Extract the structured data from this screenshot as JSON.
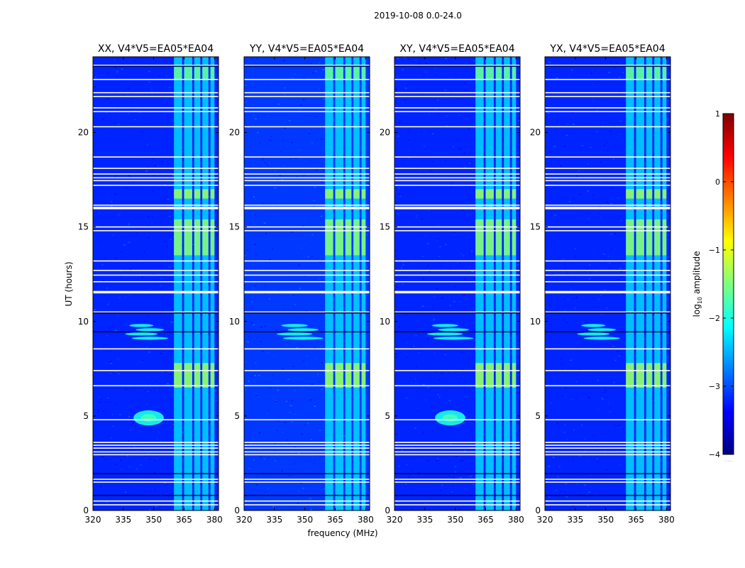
{
  "figure": {
    "suptitle": "2019-10-08 0.0-24.0",
    "ylabel": "UT (hours)",
    "xlabel": "frequency (MHz)"
  },
  "colorbar": {
    "label_text": "log",
    "label_sub": "10",
    "label_suffix": " amplitude",
    "min": -4,
    "max": 1,
    "ticks": [
      1,
      0,
      -1,
      -2,
      -3,
      -4
    ],
    "tick_labels": [
      "1",
      "0",
      "−1",
      "−2",
      "−3",
      "−4"
    ],
    "bottom_note": ".....",
    "colormap": [
      "#00007f",
      "#0000ff",
      "#007fff",
      "#00ffff",
      "#7fff7f",
      "#ffff00",
      "#ff7f00",
      "#ff0000",
      "#7f0000"
    ]
  },
  "chart_data": [
    {
      "type": "heatmap",
      "title": "XX, V4*V5=EA05*EA04",
      "xlim": [
        320,
        382
      ],
      "ylim": [
        0,
        24
      ],
      "xticks": [
        320,
        335,
        350,
        365,
        380
      ],
      "yticks": [
        0,
        5,
        10,
        15,
        20
      ],
      "xtick_labels": [
        "320",
        "335",
        "350",
        "365",
        "380"
      ],
      "ytick_labels": [
        "0",
        "5",
        "10",
        "15",
        "20"
      ],
      "background_log10_amplitude": -3.2,
      "bright_freq_bands_mhz": [
        [
          360,
          364
        ],
        [
          365,
          369
        ],
        [
          370,
          373
        ],
        [
          374,
          377
        ],
        [
          378,
          380
        ]
      ],
      "flagged_ut_hours": [
        0.3,
        0.5,
        1.5,
        1.65,
        2.95,
        3.1,
        3.3,
        3.45,
        3.6,
        4.8,
        6.6,
        7.4,
        8.55,
        10.5,
        11.55,
        12.1,
        12.45,
        12.7,
        13.2,
        14.8,
        15.0,
        16.0,
        16.15,
        17.2,
        17.45,
        17.6,
        17.8,
        18.1,
        18.7,
        20.3,
        21.1,
        21.3,
        21.9,
        22.1,
        22.8,
        23.55
      ],
      "features": [
        {
          "type": "broadband_rfi_blob",
          "ut_range": [
            4.5,
            5.3
          ],
          "freq_range_mhz": [
            340,
            355
          ]
        },
        {
          "type": "broadband_rfi_streaks",
          "ut_range": [
            9.0,
            9.9
          ],
          "freq_range_mhz": [
            336,
            356
          ]
        }
      ]
    },
    {
      "type": "heatmap",
      "title": "YY, V4*V5=EA05*EA04",
      "xlim": [
        320,
        382
      ],
      "ylim": [
        0,
        24
      ],
      "xticks": [
        320,
        335,
        350,
        365,
        380
      ],
      "yticks": [
        0,
        5,
        10,
        15,
        20
      ],
      "xtick_labels": [
        "320",
        "335",
        "350",
        "365",
        "380"
      ],
      "ytick_labels": [
        "0",
        "5",
        "10",
        "15",
        "20"
      ],
      "background_log10_amplitude": -3.1,
      "bright_freq_bands_mhz": [
        [
          360,
          364
        ],
        [
          365,
          369
        ],
        [
          370,
          373
        ],
        [
          374,
          377
        ],
        [
          378,
          380
        ]
      ],
      "flagged_ut_hours": [
        0.3,
        0.5,
        1.5,
        1.65,
        2.95,
        3.1,
        3.3,
        3.45,
        3.6,
        4.8,
        6.6,
        7.4,
        8.55,
        10.5,
        11.55,
        12.1,
        12.45,
        12.7,
        13.2,
        14.8,
        15.0,
        16.0,
        16.15,
        17.2,
        17.45,
        17.6,
        17.8,
        18.1,
        18.7,
        20.3,
        21.1,
        21.3,
        21.9,
        22.1,
        22.8,
        23.55
      ],
      "features": [
        {
          "type": "broadband_rfi_streaks",
          "ut_range": [
            9.0,
            9.9
          ],
          "freq_range_mhz": [
            336,
            358
          ]
        }
      ]
    },
    {
      "type": "heatmap",
      "title": "XY, V4*V5=EA05*EA04",
      "xlim": [
        320,
        382
      ],
      "ylim": [
        0,
        24
      ],
      "xticks": [
        320,
        335,
        350,
        365,
        380
      ],
      "yticks": [
        0,
        5,
        10,
        15,
        20
      ],
      "xtick_labels": [
        "320",
        "335",
        "350",
        "365",
        "380"
      ],
      "ytick_labels": [
        "0",
        "5",
        "10",
        "15",
        "20"
      ],
      "background_log10_amplitude": -3.2,
      "bright_freq_bands_mhz": [
        [
          360,
          364
        ],
        [
          365,
          369
        ],
        [
          370,
          373
        ],
        [
          374,
          377
        ],
        [
          378,
          380
        ]
      ],
      "flagged_ut_hours": [
        0.3,
        0.5,
        1.5,
        1.65,
        2.95,
        3.1,
        3.3,
        3.45,
        3.6,
        4.8,
        6.6,
        7.4,
        8.55,
        10.5,
        11.55,
        12.1,
        12.45,
        12.7,
        13.2,
        14.8,
        15.0,
        16.0,
        16.15,
        17.2,
        17.45,
        17.6,
        17.8,
        18.1,
        18.7,
        20.3,
        21.1,
        21.3,
        21.9,
        22.1,
        22.8,
        23.55
      ],
      "features": [
        {
          "type": "broadband_rfi_blob",
          "ut_range": [
            4.5,
            5.3
          ],
          "freq_range_mhz": [
            340,
            355
          ]
        },
        {
          "type": "broadband_rfi_streaks",
          "ut_range": [
            9.0,
            9.9
          ],
          "freq_range_mhz": [
            336,
            358
          ]
        }
      ]
    },
    {
      "type": "heatmap",
      "title": "YX, V4*V5=EA05*EA04",
      "xlim": [
        320,
        382
      ],
      "ylim": [
        0,
        24
      ],
      "xticks": [
        320,
        335,
        350,
        365,
        380
      ],
      "yticks": [
        0,
        5,
        10,
        15,
        20
      ],
      "xtick_labels": [
        "320",
        "335",
        "350",
        "365",
        "380"
      ],
      "ytick_labels": [
        "0",
        "5",
        "10",
        "15",
        "20"
      ],
      "background_log10_amplitude": -3.2,
      "bright_freq_bands_mhz": [
        [
          360,
          364
        ],
        [
          365,
          369
        ],
        [
          370,
          373
        ],
        [
          374,
          377
        ],
        [
          378,
          380
        ]
      ],
      "flagged_ut_hours": [
        0.3,
        0.5,
        1.5,
        1.65,
        2.95,
        3.1,
        3.3,
        3.45,
        3.6,
        4.8,
        6.6,
        7.4,
        8.55,
        10.5,
        11.55,
        12.1,
        12.45,
        12.7,
        13.2,
        14.8,
        15.0,
        16.0,
        16.15,
        17.2,
        17.45,
        17.6,
        17.8,
        18.1,
        18.7,
        20.3,
        21.1,
        21.3,
        21.9,
        22.1,
        22.8,
        23.55
      ],
      "features": [
        {
          "type": "broadband_rfi_streaks",
          "ut_range": [
            9.0,
            9.9
          ],
          "freq_range_mhz": [
            336,
            356
          ]
        }
      ]
    }
  ]
}
